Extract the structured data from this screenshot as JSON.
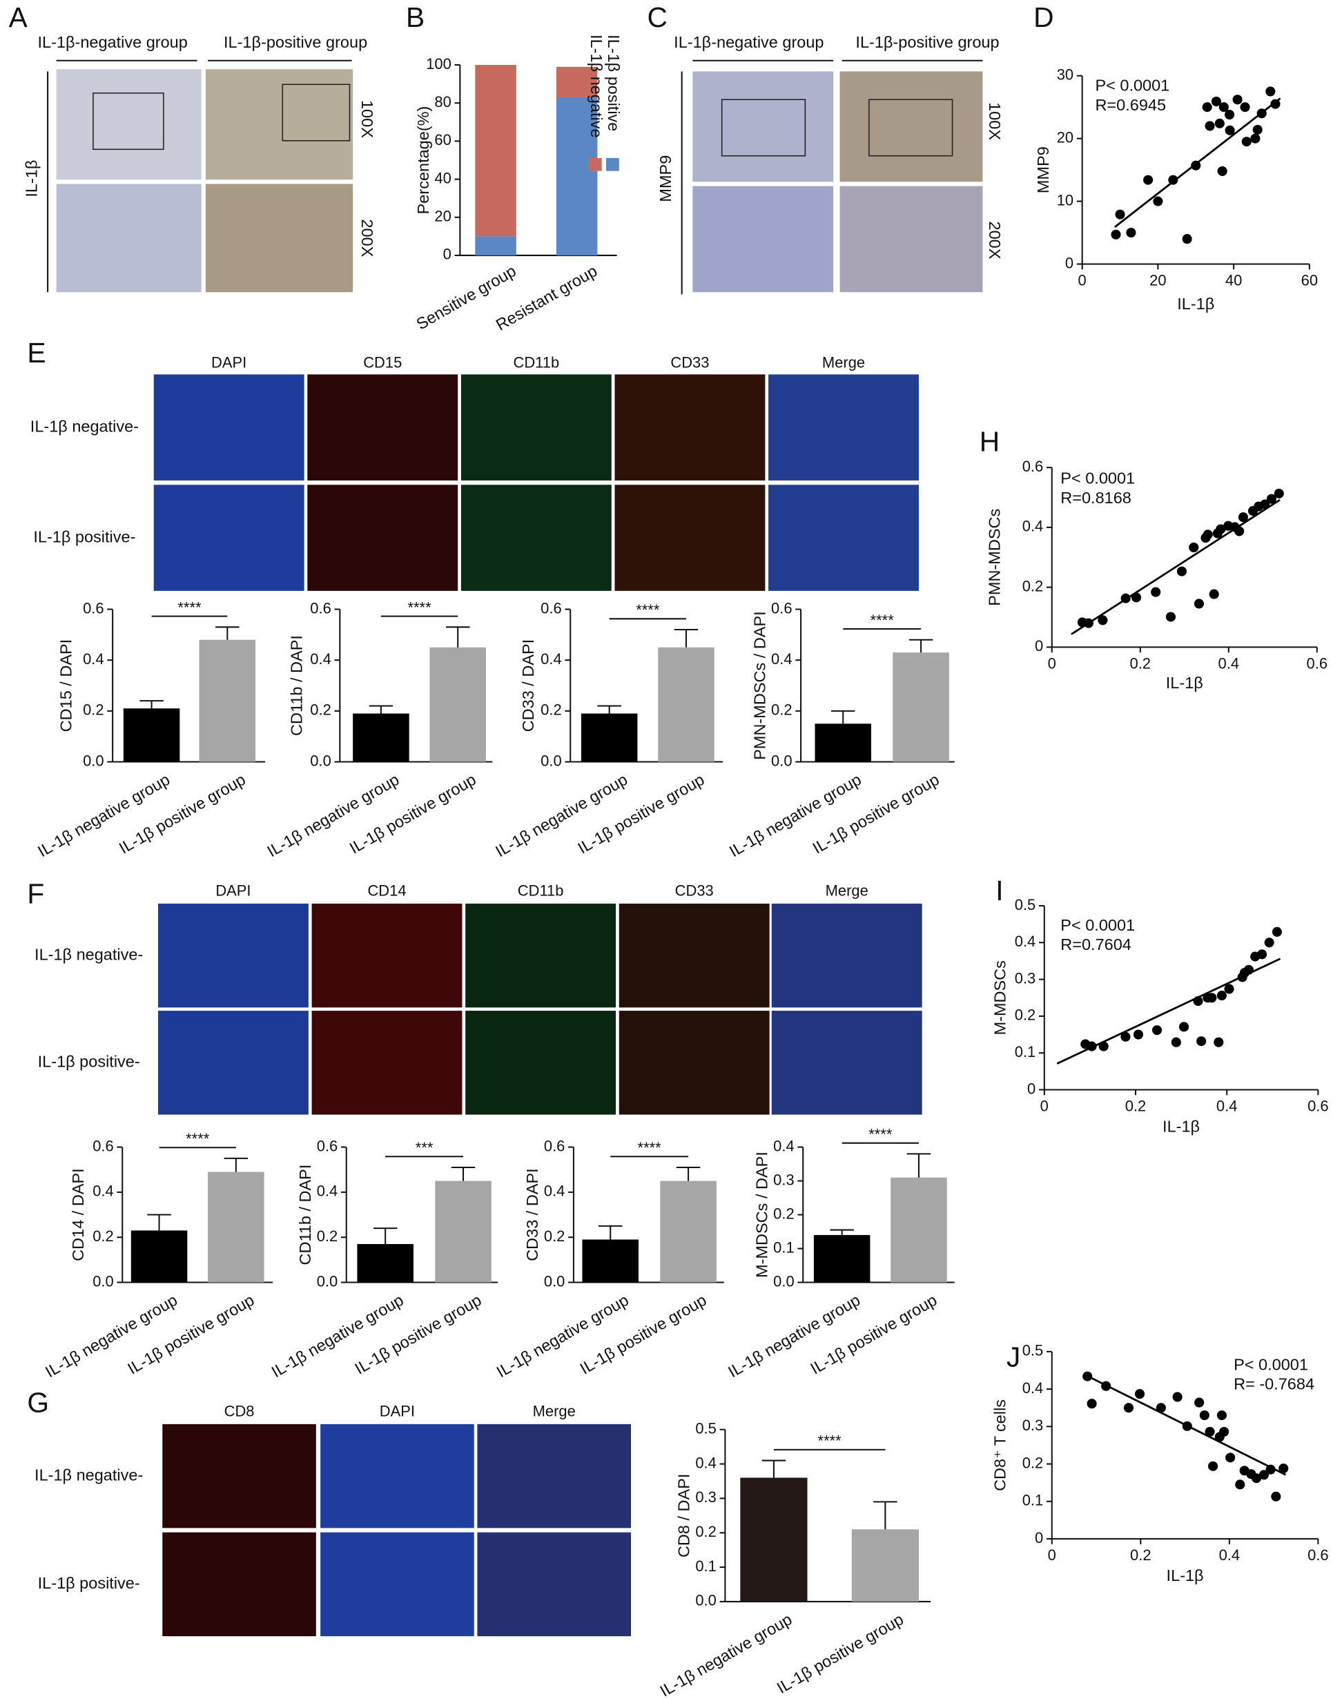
{
  "figure": {
    "panels": [
      "A",
      "B",
      "C",
      "D",
      "E",
      "F",
      "G",
      "H",
      "I",
      "J"
    ],
    "a": {
      "columns": [
        "IL-1β-negative group",
        "IL-1β-positive group"
      ],
      "row_label": "IL-1β",
      "magnifications": [
        "100X",
        "200X"
      ]
    },
    "c": {
      "columns": [
        "IL-1β-negative group",
        "IL-1β-positive group"
      ],
      "row_label": "MMP9",
      "magnifications": [
        "100X",
        "200X"
      ]
    },
    "e": {
      "channels": [
        "DAPI",
        "CD15",
        "CD11b",
        "CD33",
        "Merge"
      ],
      "rows": [
        "IL-1β negative-",
        "IL-1β positive-"
      ]
    },
    "f": {
      "channels": [
        "DAPI",
        "CD14",
        "CD11b",
        "CD33",
        "Merge"
      ],
      "rows": [
        "IL-1β negative-",
        "IL-1β positive-"
      ]
    },
    "g": {
      "channels": [
        "CD8",
        "DAPI",
        "Merge"
      ],
      "rows": [
        "IL-1β negative-",
        "IL-1β positive-"
      ]
    }
  },
  "chart_data": [
    {
      "type": "stacked_bar",
      "ylabel": "Percentage(%)",
      "categories": [
        "Sensitive group",
        "Resistant group"
      ],
      "series": [
        {
          "name": "IL-1β positive",
          "color": "#5b87c5",
          "values": [
            10,
            83
          ]
        },
        {
          "name": "IL-1β negative",
          "color": "#c8695f",
          "values": [
            90,
            16
          ]
        }
      ],
      "ylim": [
        0,
        100
      ],
      "yticks": [
        0,
        20,
        40,
        60,
        80,
        100
      ],
      "legend": "right"
    },
    {
      "type": "scatter",
      "xlabel": "IL-1β",
      "ylabel": "MMP9",
      "annotations": [
        "P< 0.0001",
        "R=0.6945"
      ],
      "x": [
        8.9,
        10,
        12.9,
        17.4,
        20,
        24,
        27.7,
        30,
        33,
        33.7,
        35.4,
        36.3,
        37.4,
        37,
        38.9,
        39,
        41,
        43,
        43.4,
        45.7,
        46.3,
        47.4,
        49.7,
        51
      ],
      "y": [
        4.7,
        7.9,
        5,
        13.4,
        10,
        13.4,
        4,
        15.7,
        25,
        22,
        25.9,
        22.4,
        25,
        14.8,
        23.8,
        21.3,
        26.2,
        25,
        19.5,
        20,
        21.4,
        24,
        27.5,
        25.5
      ],
      "fit": {
        "x": [
          8.6,
          52.3
        ],
        "y": [
          5.9,
          26.4
        ]
      },
      "color": "#000000",
      "xlim": [
        0,
        60
      ],
      "xticks": [
        0,
        20,
        40,
        60
      ],
      "ylim": [
        0,
        30
      ],
      "yticks": [
        0,
        10,
        20,
        30
      ]
    },
    {
      "type": "bar",
      "ylabel": "CD15 / DAPI",
      "categories": [
        "IL-1β negative group",
        "IL-1β positive group"
      ],
      "values": [
        0.21,
        0.48
      ],
      "errors": [
        0.03,
        0.05
      ],
      "colors": [
        "#000000",
        "#a6a6a6"
      ],
      "significance": "****",
      "ylim": [
        0,
        0.6
      ],
      "yticks": [
        {
          "value": 0,
          "label": "0.0"
        },
        0.2,
        0.4,
        0.6
      ]
    },
    {
      "type": "bar",
      "ylabel": "CD11b / DAPI",
      "categories": [
        "IL-1β negative group",
        "IL-1β positive group"
      ],
      "values": [
        0.19,
        0.45
      ],
      "errors": [
        0.03,
        0.08
      ],
      "colors": [
        "#000000",
        "#a6a6a6"
      ],
      "significance": "****",
      "ylim": [
        0,
        0.6
      ],
      "yticks": [
        {
          "value": 0,
          "label": "0.0"
        },
        0.2,
        0.4,
        0.6
      ]
    },
    {
      "type": "bar",
      "ylabel": "CD33 / DAPI",
      "categories": [
        "IL-1β negative group",
        "IL-1β positive group"
      ],
      "values": [
        0.19,
        0.45
      ],
      "errors": [
        0.03,
        0.07
      ],
      "colors": [
        "#000000",
        "#a6a6a6"
      ],
      "significance": "****",
      "ylim": [
        0,
        0.6
      ],
      "yticks": [
        {
          "value": 0,
          "label": "0.0"
        },
        0.2,
        0.4,
        0.6
      ]
    },
    {
      "type": "bar",
      "ylabel": "PMN-MDSCs / DAPI",
      "categories": [
        "IL-1β negative group",
        "IL-1β positive group"
      ],
      "values": [
        0.15,
        0.43
      ],
      "errors": [
        0.05,
        0.05
      ],
      "colors": [
        "#000000",
        "#a6a6a6"
      ],
      "significance": "****",
      "ylim": [
        0,
        0.6
      ],
      "yticks": [
        {
          "value": 0,
          "label": "0.0"
        },
        0.2,
        0.4,
        0.6
      ]
    },
    {
      "type": "scatter",
      "xlabel": "IL-1β",
      "ylabel": "PMN-MDSCs",
      "annotations": [
        "P< 0.0001",
        "R=0.8168"
      ],
      "x": [
        0.069,
        0.083,
        0.115,
        0.167,
        0.191,
        0.235,
        0.269,
        0.294,
        0.321,
        0.333,
        0.348,
        0.353,
        0.367,
        0.375,
        0.382,
        0.399,
        0.414,
        0.424,
        0.433,
        0.455,
        0.468,
        0.482,
        0.497,
        0.514
      ],
      "y": [
        0.083,
        0.08,
        0.09,
        0.163,
        0.166,
        0.184,
        0.101,
        0.253,
        0.333,
        0.145,
        0.365,
        0.376,
        0.177,
        0.38,
        0.394,
        0.405,
        0.401,
        0.387,
        0.434,
        0.455,
        0.47,
        0.477,
        0.495,
        0.513
      ],
      "fit": {
        "x": [
          0.044,
          0.516
        ],
        "y": [
          0.043,
          0.492
        ]
      },
      "color": "#000000",
      "xlim": [
        0,
        0.6
      ],
      "xticks": [
        0,
        0.2,
        0.4,
        0.6
      ],
      "ylim": [
        0,
        0.6
      ],
      "yticks": [
        0,
        0.2,
        0.4,
        0.6
      ]
    },
    {
      "type": "bar",
      "ylabel": "CD14 / DAPI",
      "categories": [
        "IL-1β negative group",
        "IL-1β positive group"
      ],
      "values": [
        0.23,
        0.49
      ],
      "errors": [
        0.07,
        0.06
      ],
      "colors": [
        "#000000",
        "#a6a6a6"
      ],
      "significance": "****",
      "ylim": [
        0,
        0.6
      ],
      "yticks": [
        {
          "value": 0,
          "label": "0.0"
        },
        0.2,
        0.4,
        0.6
      ]
    },
    {
      "type": "bar",
      "ylabel": "CD11b / DAPI",
      "categories": [
        "IL-1β negative group",
        "IL-1β positive group"
      ],
      "values": [
        0.17,
        0.45
      ],
      "errors": [
        0.07,
        0.06
      ],
      "colors": [
        "#000000",
        "#a6a6a6"
      ],
      "significance": "***",
      "ylim": [
        0,
        0.6
      ],
      "yticks": [
        {
          "value": 0,
          "label": "0.0"
        },
        0.2,
        0.4,
        0.6
      ]
    },
    {
      "type": "bar",
      "ylabel": "CD33 / DAPI",
      "categories": [
        "IL-1β negative group",
        "IL-1β positive group"
      ],
      "values": [
        0.19,
        0.45
      ],
      "errors": [
        0.06,
        0.06
      ],
      "colors": [
        "#000000",
        "#a6a6a6"
      ],
      "significance": "****",
      "ylim": [
        0,
        0.6
      ],
      "yticks": [
        {
          "value": 0,
          "label": "0.0"
        },
        0.2,
        0.4,
        0.6
      ]
    },
    {
      "type": "bar",
      "ylabel": "M-MDSCs / DAPI",
      "categories": [
        "IL-1β negative group",
        "IL-1β positive group"
      ],
      "values": [
        0.14,
        0.31
      ],
      "errors": [
        0.015,
        0.07
      ],
      "colors": [
        "#000000",
        "#a6a6a6"
      ],
      "significance": "****",
      "ylim": [
        0,
        0.4
      ],
      "yticks": [
        {
          "value": 0,
          "label": "0.0"
        },
        0.1,
        0.2,
        0.3,
        0.4
      ]
    },
    {
      "type": "scatter",
      "xlabel": "IL-1β",
      "ylabel": "M-MDSCs",
      "annotations": [
        "P< 0.0001",
        "R=0.7604"
      ],
      "x": [
        0.09,
        0.104,
        0.13,
        0.178,
        0.206,
        0.247,
        0.289,
        0.306,
        0.337,
        0.344,
        0.358,
        0.367,
        0.382,
        0.389,
        0.405,
        0.434,
        0.439,
        0.448,
        0.462,
        0.477,
        0.493,
        0.51
      ],
      "y": [
        0.124,
        0.118,
        0.118,
        0.144,
        0.15,
        0.162,
        0.129,
        0.171,
        0.241,
        0.132,
        0.25,
        0.25,
        0.129,
        0.256,
        0.274,
        0.306,
        0.318,
        0.326,
        0.362,
        0.368,
        0.4,
        0.429
      ],
      "fit": {
        "x": [
          0.028,
          0.517
        ],
        "y": [
          0.071,
          0.356
        ]
      },
      "color": "#000000",
      "xlim": [
        0,
        0.6
      ],
      "xticks": [
        0,
        0.2,
        0.4,
        0.6
      ],
      "ylim": [
        0,
        0.5
      ],
      "yticks": [
        0,
        0.1,
        0.2,
        0.3,
        0.4,
        0.5
      ]
    },
    {
      "type": "bar",
      "ylabel": "CD8 / DAPI",
      "categories": [
        "IL-1β negative group",
        "IL-1β positive group"
      ],
      "values": [
        0.36,
        0.21
      ],
      "errors": [
        0.05,
        0.08
      ],
      "colors": [
        "#231815",
        "#a6a6a6"
      ],
      "significance": "****",
      "ylim": [
        0,
        0.5
      ],
      "yticks": [
        {
          "value": 0,
          "label": "0.0"
        },
        0.1,
        0.2,
        0.3,
        0.4,
        0.5
      ]
    },
    {
      "type": "scatter",
      "xlabel": "IL-1β",
      "ylabel": "CD8⁺ T cells",
      "annotations": [
        "P< 0.0001",
        "R= -0.7684"
      ],
      "x": [
        0.08,
        0.09,
        0.122,
        0.173,
        0.198,
        0.246,
        0.283,
        0.305,
        0.332,
        0.344,
        0.356,
        0.363,
        0.378,
        0.383,
        0.388,
        0.402,
        0.424,
        0.434,
        0.449,
        0.461,
        0.478,
        0.493,
        0.505,
        0.522
      ],
      "y": [
        0.434,
        0.361,
        0.408,
        0.35,
        0.387,
        0.35,
        0.379,
        0.301,
        0.364,
        0.33,
        0.286,
        0.194,
        0.272,
        0.33,
        0.286,
        0.217,
        0.145,
        0.182,
        0.173,
        0.162,
        0.171,
        0.185,
        0.113,
        0.188
      ],
      "fit": {
        "x": [
          0.073,
          0.527
        ],
        "y": [
          0.439,
          0.171
        ]
      },
      "color": "#000000",
      "xlim": [
        0,
        0.6
      ],
      "xticks": [
        0,
        0.2,
        0.4,
        0.6
      ],
      "ylim": [
        0,
        0.5
      ],
      "yticks": [
        0,
        0.1,
        0.2,
        0.3,
        0.4,
        0.5
      ]
    }
  ]
}
